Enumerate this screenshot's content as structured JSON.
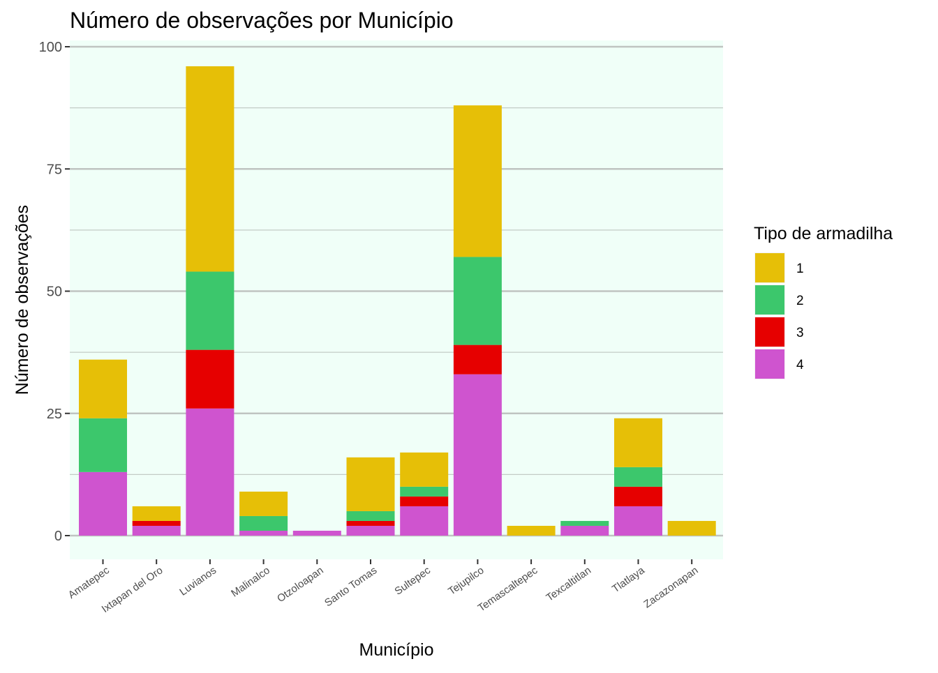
{
  "chart_data": {
    "type": "bar",
    "stacked": true,
    "title": "Número de observações por Município",
    "xlabel": "Município",
    "ylabel": "Número de observações",
    "ylim": [
      -2,
      100
    ],
    "yticks": [
      0,
      25,
      50,
      75,
      100
    ],
    "grid": true,
    "legend_position": "right",
    "legend_title": "Tipo de armadilha",
    "background_color": "#f0fff8",
    "categories": [
      "Amatepec",
      "Ixtapan del Oro",
      "Luvianos",
      "Malinalco",
      "Otzoloapan",
      "Santo Tomas",
      "Sultepec",
      "Tejupilco",
      "Temascaltepec",
      "Texcaltitlan",
      "Tlatlaya",
      "Zacazonapan"
    ],
    "series": [
      {
        "name": "1",
        "color": "#e6bf07",
        "values": [
          12,
          3,
          42,
          5,
          0,
          11,
          7,
          31,
          2,
          0,
          10,
          3
        ]
      },
      {
        "name": "2",
        "color": "#3cc76c",
        "values": [
          11,
          0,
          16,
          3,
          0,
          2,
          2,
          18,
          0,
          1,
          4,
          0
        ]
      },
      {
        "name": "3",
        "color": "#e60000",
        "values": [
          0,
          1,
          12,
          0,
          0,
          1,
          2,
          6,
          0,
          0,
          4,
          0
        ]
      },
      {
        "name": "4",
        "color": "#cf54cf",
        "values": [
          13,
          2,
          26,
          1,
          1,
          2,
          6,
          33,
          0,
          2,
          6,
          0
        ]
      }
    ]
  }
}
